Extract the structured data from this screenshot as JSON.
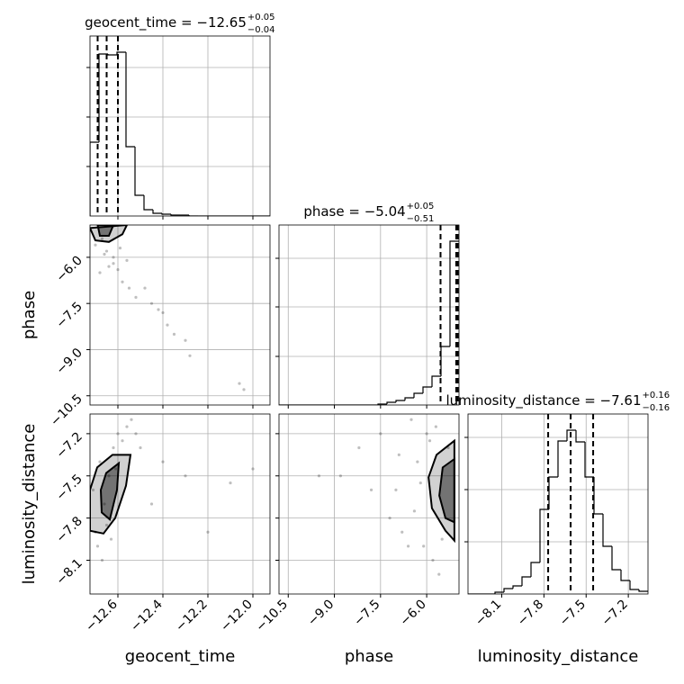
{
  "chart_data": {
    "type": "corner",
    "grid": true,
    "parameters": [
      {
        "name": "geocent_time",
        "title": "geocent_time = −12.65",
        "title_upper": "+0.05",
        "title_lower": "−0.04",
        "lim": [
          -12.724,
          -11.924
        ],
        "ticks": [
          {
            "value": -12.6,
            "label": "−12.6"
          },
          {
            "value": -12.4,
            "label": "−12.4"
          },
          {
            "value": -12.2,
            "label": "−12.2"
          },
          {
            "value": -12.0,
            "label": "−12.0"
          }
        ],
        "quantiles": [
          -12.69,
          -12.65,
          -12.6
        ],
        "bins": [
          -12.724,
          -12.684,
          -12.644,
          -12.604,
          -12.564,
          -12.524,
          -12.484,
          -12.444,
          -12.404,
          -12.364,
          -12.324,
          -12.284,
          -12.244,
          -12.204,
          -12.164,
          -12.124,
          -12.084,
          -12.044,
          -12.004,
          -11.964,
          -11.924
        ],
        "counts": [
          82,
          180,
          179,
          182,
          77,
          23,
          7,
          3,
          2,
          1,
          1,
          0,
          0,
          0,
          0,
          0,
          0,
          0,
          0,
          0
        ],
        "count_lim": [
          0,
          200
        ],
        "count_ticks": [
          55,
          110,
          165
        ]
      },
      {
        "name": "phase",
        "title": "phase = −5.04",
        "title_upper": "+0.05",
        "title_lower": "−0.51",
        "lim": [
          -10.8,
          -4.95
        ],
        "ticks": [
          {
            "value": -10.5,
            "label": "−10.5"
          },
          {
            "value": -9.0,
            "label": "−9.0"
          },
          {
            "value": -7.5,
            "label": "−7.5"
          },
          {
            "value": -6.0,
            "label": "−6.0"
          }
        ],
        "quantiles": [
          -5.55,
          -5.04,
          -4.99
        ],
        "bins": [
          -10.8,
          -10.5075,
          -10.215,
          -9.9225,
          -9.63,
          -9.3375,
          -9.045,
          -8.7525,
          -8.46,
          -8.1675,
          -7.875,
          -7.5825,
          -7.29,
          -6.9975,
          -6.705,
          -6.4125,
          -6.12,
          -5.8275,
          -5.535,
          -5.2425,
          -4.95
        ],
        "counts": [
          0,
          0,
          0,
          0,
          0,
          0,
          0,
          0,
          0,
          0,
          0,
          1,
          3,
          5,
          8,
          13,
          20,
          32,
          65,
          182
        ],
        "count_lim": [
          0,
          200
        ],
        "count_ticks": [
          54,
          109,
          163
        ]
      },
      {
        "name": "luminosity_distance",
        "title": "luminosity_distance = −7.61",
        "title_upper": "+0.16",
        "title_lower": "−0.16",
        "lim": [
          -8.34,
          -7.06
        ],
        "ticks": [
          {
            "value": -8.1,
            "label": "−8.1"
          },
          {
            "value": -7.8,
            "label": "−7.8"
          },
          {
            "value": -7.5,
            "label": "−7.5"
          },
          {
            "value": -7.2,
            "label": "−7.2"
          }
        ],
        "quantiles": [
          -7.77,
          -7.61,
          -7.45
        ],
        "bins": [
          -8.34,
          -8.276,
          -8.212,
          -8.148,
          -8.084,
          -8.02,
          -7.956,
          -7.892,
          -7.828,
          -7.764,
          -7.7,
          -7.636,
          -7.572,
          -7.508,
          -7.444,
          -7.38,
          -7.316,
          -7.252,
          -7.188,
          -7.124,
          -7.06
        ],
        "counts": [
          0,
          0,
          0,
          2,
          6,
          9,
          19,
          35,
          94,
          130,
          170,
          182,
          169,
          130,
          89,
          53,
          27,
          15,
          5,
          3
        ],
        "count_lim": [
          0,
          200
        ],
        "count_ticks": [
          58,
          116,
          174
        ]
      }
    ],
    "pairs": [
      {
        "x_param": 0,
        "y_param": 1,
        "points_x": [
          -12.67,
          -12.65,
          -12.62,
          -12.68,
          -12.6,
          -12.58,
          -12.55,
          -12.52,
          -12.48,
          -12.45,
          -12.42,
          -12.4,
          -12.38,
          -12.35,
          -12.3,
          -12.28,
          -12.62,
          -12.64,
          -12.66,
          -12.7,
          -12.06,
          -12.04,
          -12.59,
          -12.56
        ],
        "points_y": [
          -5.4,
          -5.8,
          -6.2,
          -6.5,
          -6.4,
          -6.8,
          -7.0,
          -7.3,
          -7.0,
          -7.5,
          -7.7,
          -7.8,
          -8.2,
          -8.5,
          -8.7,
          -9.2,
          -6.0,
          -6.3,
          -5.9,
          -5.6,
          -10.1,
          -10.3,
          -5.7,
          -6.1
        ],
        "contours": [
          {
            "x": [
              -12.724,
              -12.7,
              -12.64,
              -12.58,
              -12.56
            ],
            "y": [
              -5.05,
              -5.45,
              -5.5,
              -5.25,
              -4.95
            ]
          },
          {
            "x": [
              -12.69,
              -12.68,
              -12.64,
              -12.62
            ],
            "y": [
              -4.95,
              -5.3,
              -5.3,
              -4.95
            ]
          }
        ]
      },
      {
        "x_param": 0,
        "y_param": 2,
        "points_x": [
          -12.7,
          -12.68,
          -12.66,
          -12.64,
          -12.62,
          -12.6,
          -12.58,
          -12.56,
          -12.54,
          -12.52,
          -12.5,
          -12.69,
          -12.67,
          -12.65,
          -12.63,
          -12.71,
          -12.61,
          -12.4,
          -12.3,
          -12.1,
          -12.0,
          -12.45,
          -12.2
        ],
        "points_y": [
          -7.9,
          -7.4,
          -7.7,
          -7.5,
          -7.3,
          -7.2,
          -7.25,
          -7.15,
          -7.1,
          -7.2,
          -7.3,
          -8.0,
          -8.1,
          -7.85,
          -7.95,
          -7.6,
          -7.45,
          -7.4,
          -7.5,
          -7.55,
          -7.45,
          -7.7,
          -7.9
        ],
        "contours": [
          {
            "x": [
              -12.724,
              -12.692,
              -12.624,
              -12.544,
              -12.564,
              -12.612,
              -12.664,
              -12.724
            ],
            "y": [
              -7.6,
              -7.44,
              -7.35,
              -7.35,
              -7.57,
              -7.8,
              -7.91,
              -7.89
            ]
          },
          {
            "x": [
              -12.676,
              -12.652,
              -12.596,
              -12.604,
              -12.636,
              -12.672
            ],
            "y": [
              -7.6,
              -7.48,
              -7.41,
              -7.6,
              -7.81,
              -7.76
            ]
          }
        ]
      },
      {
        "x_param": 1,
        "y_param": 2,
        "points_x": [
          -8.8,
          -8.2,
          -7.5,
          -7.0,
          -6.8,
          -6.5,
          -6.3,
          -6.1,
          -6.0,
          -5.8,
          -5.7,
          -5.6,
          -6.4,
          -6.9,
          -7.8,
          -9.5,
          -5.3,
          -5.5,
          -6.2,
          -5.9,
          -7.2,
          -6.6
        ],
        "points_y": [
          -7.5,
          -7.3,
          -7.2,
          -7.6,
          -7.9,
          -7.1,
          -7.4,
          -8.0,
          -7.2,
          -8.1,
          -7.15,
          -8.2,
          -7.75,
          -7.35,
          -7.6,
          -7.5,
          -7.3,
          -7.95,
          -7.55,
          -7.25,
          -7.8,
          -8.0
        ],
        "contours": [
          {
            "x": [
              -5.1,
              -5.68,
              -5.94,
              -5.83,
              -5.39,
              -5.1
            ],
            "y": [
              -7.25,
              -7.35,
              -7.51,
              -7.73,
              -7.89,
              -7.96
            ]
          },
          {
            "x": [
              -5.1,
              -5.48,
              -5.59,
              -5.39,
              -5.1
            ],
            "y": [
              -7.38,
              -7.44,
              -7.64,
              -7.8,
              -7.83
            ]
          }
        ]
      }
    ]
  }
}
